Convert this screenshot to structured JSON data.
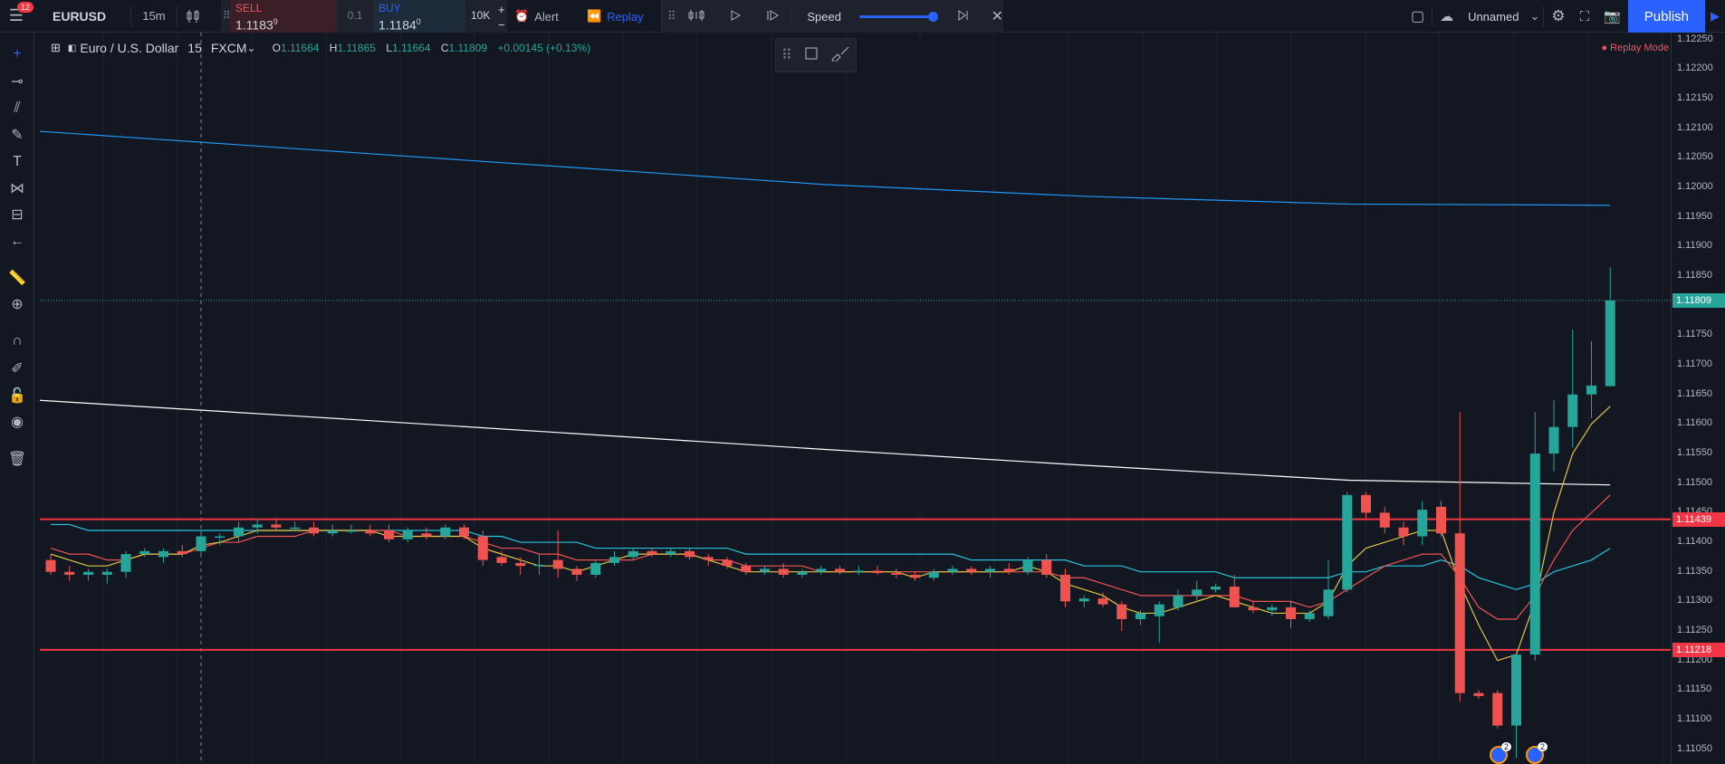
{
  "topbar": {
    "notifications": "12",
    "symbol": "EURUSD",
    "interval": "15m",
    "sell_label": "SELL",
    "sell_price": "1.1183",
    "sell_sup": "9",
    "qty": "0.1",
    "buy_label": "BUY",
    "buy_price": "1.1184",
    "buy_sup": "0",
    "lots": "10K",
    "alert_label": "Alert",
    "replay_label": "Replay",
    "speed_label": "Speed",
    "layout_name": "Unnamed",
    "publish_label": "Publish"
  },
  "replay": {
    "speed_level": 1.0
  },
  "legend": {
    "name": "Euro / U.S. Dollar",
    "interval": "15",
    "source": "FXCM",
    "o_key": "O",
    "o": "1.11664",
    "h_key": "H",
    "h": "1.11865",
    "l_key": "L",
    "l": "1.11664",
    "c_key": "C",
    "c": "1.11809",
    "change": "+0.00145 (+0.13%)"
  },
  "replay_mode": "Replay Mode",
  "colors": {
    "up": "#26a69a",
    "down": "#ef5350",
    "hline": "#f23645",
    "ema_slow": "#ffffff",
    "ema_long": "#2196f3",
    "ma_fast": "#e0c341",
    "ma_mid": "#ef5350",
    "ma_slow": "#26c6da"
  },
  "chart_data": {
    "type": "candlestick",
    "price_axis": [
      "1.12250",
      "1.12200",
      "1.12150",
      "1.12100",
      "1.12050",
      "1.12000",
      "1.11950",
      "1.11900",
      "1.11850",
      "1.11800",
      "1.11750",
      "1.11700",
      "1.11650",
      "1.11600",
      "1.11550",
      "1.11500",
      "1.11450",
      "1.11400",
      "1.11350",
      "1.11300",
      "1.11250",
      "1.11200",
      "1.11150",
      "1.11100",
      "1.11050"
    ],
    "ylim": [
      1.11025,
      1.12262
    ],
    "current_price": "1.11809",
    "horizontal_lines": [
      "1.11439",
      "1.11218"
    ],
    "candles": [
      [
        1.1137,
        1.1138,
        1.11345,
        1.1135
      ],
      [
        1.1135,
        1.1136,
        1.11335,
        1.11345
      ],
      [
        1.11345,
        1.11355,
        1.11335,
        1.1135
      ],
      [
        1.11345,
        1.11355,
        1.1133,
        1.1135
      ],
      [
        1.1135,
        1.11385,
        1.1134,
        1.1138
      ],
      [
        1.1138,
        1.1139,
        1.11375,
        1.11385
      ],
      [
        1.11375,
        1.1139,
        1.11365,
        1.11385
      ],
      [
        1.11385,
        1.11395,
        1.11375,
        1.1138
      ],
      [
        1.11385,
        1.1142,
        1.1138,
        1.1141
      ],
      [
        1.1141,
        1.11415,
        1.11395,
        1.1141
      ],
      [
        1.1141,
        1.11435,
        1.114,
        1.11425
      ],
      [
        1.11425,
        1.1144,
        1.11415,
        1.1143
      ],
      [
        1.1143,
        1.1144,
        1.1142,
        1.11425
      ],
      [
        1.11425,
        1.11435,
        1.1142,
        1.11425
      ],
      [
        1.11425,
        1.11435,
        1.1141,
        1.11415
      ],
      [
        1.11415,
        1.1143,
        1.1141,
        1.1142
      ],
      [
        1.1142,
        1.1143,
        1.11415,
        1.1142
      ],
      [
        1.1142,
        1.1143,
        1.1141,
        1.11415
      ],
      [
        1.1142,
        1.1143,
        1.114,
        1.11405
      ],
      [
        1.11405,
        1.11425,
        1.114,
        1.1142
      ],
      [
        1.11415,
        1.11425,
        1.11405,
        1.1141
      ],
      [
        1.1141,
        1.1143,
        1.11405,
        1.11425
      ],
      [
        1.11425,
        1.1143,
        1.11405,
        1.1141
      ],
      [
        1.1141,
        1.1142,
        1.1136,
        1.1137
      ],
      [
        1.11375,
        1.11385,
        1.1136,
        1.11365
      ],
      [
        1.11365,
        1.11375,
        1.11345,
        1.1136
      ],
      [
        1.1136,
        1.1138,
        1.11345,
        1.11362
      ],
      [
        1.1137,
        1.1142,
        1.1134,
        1.11355
      ],
      [
        1.11355,
        1.1136,
        1.11335,
        1.11345
      ],
      [
        1.11345,
        1.1137,
        1.1134,
        1.11365
      ],
      [
        1.11365,
        1.11385,
        1.1136,
        1.11375
      ],
      [
        1.11375,
        1.1139,
        1.1137,
        1.11385
      ],
      [
        1.11385,
        1.1139,
        1.11375,
        1.1138
      ],
      [
        1.1138,
        1.1139,
        1.11375,
        1.11385
      ],
      [
        1.11385,
        1.1139,
        1.1137,
        1.11375
      ],
      [
        1.11375,
        1.1138,
        1.1136,
        1.1137
      ],
      [
        1.1137,
        1.11375,
        1.11355,
        1.1136
      ],
      [
        1.1136,
        1.11365,
        1.11345,
        1.1135
      ],
      [
        1.1135,
        1.1136,
        1.11345,
        1.11355
      ],
      [
        1.11355,
        1.11365,
        1.1134,
        1.11345
      ],
      [
        1.11345,
        1.11355,
        1.1134,
        1.1135
      ],
      [
        1.1135,
        1.1136,
        1.11345,
        1.11355
      ],
      [
        1.11355,
        1.1136,
        1.11345,
        1.1135
      ],
      [
        1.1135,
        1.1136,
        1.11345,
        1.11352
      ],
      [
        1.11352,
        1.1136,
        1.11345,
        1.11348
      ],
      [
        1.11348,
        1.11355,
        1.1134,
        1.11345
      ],
      [
        1.11345,
        1.1135,
        1.11335,
        1.1134
      ],
      [
        1.1134,
        1.11355,
        1.11335,
        1.1135
      ],
      [
        1.1135,
        1.1136,
        1.11345,
        1.11355
      ],
      [
        1.11355,
        1.1136,
        1.11345,
        1.1135
      ],
      [
        1.1135,
        1.1136,
        1.1134,
        1.11355
      ],
      [
        1.11355,
        1.11365,
        1.11345,
        1.1135
      ],
      [
        1.1135,
        1.11375,
        1.11345,
        1.1137
      ],
      [
        1.1137,
        1.1138,
        1.1134,
        1.11345
      ],
      [
        1.11345,
        1.11355,
        1.1129,
        1.113
      ],
      [
        1.113,
        1.1131,
        1.1129,
        1.11305
      ],
      [
        1.11305,
        1.11315,
        1.1129,
        1.11295
      ],
      [
        1.11295,
        1.113,
        1.1125,
        1.1127
      ],
      [
        1.1127,
        1.11285,
        1.1126,
        1.1128
      ],
      [
        1.11275,
        1.113,
        1.1123,
        1.11295
      ],
      [
        1.1129,
        1.1132,
        1.11285,
        1.1131
      ],
      [
        1.1131,
        1.11335,
        1.113,
        1.1132
      ],
      [
        1.1132,
        1.1133,
        1.11315,
        1.11325
      ],
      [
        1.11325,
        1.11345,
        1.1129,
        1.1129
      ],
      [
        1.1129,
        1.113,
        1.1128,
        1.11285
      ],
      [
        1.11285,
        1.11295,
        1.11275,
        1.1129
      ],
      [
        1.1129,
        1.113,
        1.11255,
        1.1127
      ],
      [
        1.1127,
        1.11285,
        1.11265,
        1.1128
      ],
      [
        1.11275,
        1.1137,
        1.1127,
        1.1132
      ],
      [
        1.1132,
        1.11485,
        1.11315,
        1.1148
      ],
      [
        1.1148,
        1.11485,
        1.1144,
        1.1145
      ],
      [
        1.1145,
        1.1146,
        1.11415,
        1.11425
      ],
      [
        1.11425,
        1.11435,
        1.11395,
        1.1141
      ],
      [
        1.1141,
        1.1147,
        1.11395,
        1.11455
      ],
      [
        1.1146,
        1.1147,
        1.1141,
        1.11415
      ],
      [
        1.11415,
        1.1162,
        1.1113,
        1.11145
      ],
      [
        1.11145,
        1.1115,
        1.11135,
        1.1114
      ],
      [
        1.11145,
        1.1115,
        1.11085,
        1.1109
      ],
      [
        1.1109,
        1.1121,
        1.11035,
        1.1121
      ],
      [
        1.1121,
        1.1162,
        1.112,
        1.1155
      ],
      [
        1.1155,
        1.1164,
        1.1152,
        1.11595
      ],
      [
        1.11595,
        1.1176,
        1.1156,
        1.1165
      ],
      [
        1.1165,
        1.1174,
        1.1161,
        1.11665
      ],
      [
        1.11664,
        1.11865,
        1.11664,
        1.11809
      ]
    ],
    "ma_fast": [
      1.1138,
      1.1137,
      1.1136,
      1.1136,
      1.1137,
      1.1138,
      1.1138,
      1.1138,
      1.11395,
      1.114,
      1.1141,
      1.1142,
      1.1142,
      1.1142,
      1.1142,
      1.1142,
      1.1142,
      1.1142,
      1.1141,
      1.1141,
      1.1141,
      1.1141,
      1.1141,
      1.1139,
      1.1138,
      1.1137,
      1.1136,
      1.1136,
      1.1135,
      1.1136,
      1.1137,
      1.1138,
      1.1138,
      1.1138,
      1.1138,
      1.1137,
      1.1136,
      1.1135,
      1.1135,
      1.1135,
      1.1135,
      1.1135,
      1.1135,
      1.1135,
      1.1135,
      1.1135,
      1.1134,
      1.1135,
      1.1135,
      1.1135,
      1.1135,
      1.1135,
      1.1136,
      1.1135,
      1.1133,
      1.1132,
      1.1131,
      1.1129,
      1.1128,
      1.1128,
      1.1129,
      1.113,
      1.1131,
      1.113,
      1.1129,
      1.1128,
      1.1128,
      1.1128,
      1.113,
      1.1136,
      1.1139,
      1.114,
      1.1141,
      1.1142,
      1.1142,
      1.1133,
      1.1126,
      1.112,
      1.1121,
      1.113,
      1.1145,
      1.1155,
      1.116,
      1.1163
    ],
    "ma_mid": [
      1.1139,
      1.1138,
      1.1138,
      1.1137,
      1.1137,
      1.1138,
      1.1138,
      1.1138,
      1.1139,
      1.114,
      1.114,
      1.1141,
      1.1141,
      1.1141,
      1.1142,
      1.1142,
      1.1142,
      1.1142,
      1.1142,
      1.1141,
      1.1141,
      1.1141,
      1.1141,
      1.114,
      1.1139,
      1.1139,
      1.1138,
      1.1138,
      1.1137,
      1.1137,
      1.1137,
      1.1137,
      1.1138,
      1.1138,
      1.1138,
      1.1137,
      1.1137,
      1.1136,
      1.1136,
      1.1136,
      1.1136,
      1.1135,
      1.1135,
      1.1135,
      1.1135,
      1.1135,
      1.1135,
      1.1135,
      1.1135,
      1.1135,
      1.1135,
      1.1135,
      1.1135,
      1.1135,
      1.1134,
      1.1134,
      1.1133,
      1.1132,
      1.1131,
      1.1131,
      1.1131,
      1.1131,
      1.1131,
      1.1131,
      1.113,
      1.113,
      1.113,
      1.1129,
      1.113,
      1.1132,
      1.1134,
      1.1136,
      1.1137,
      1.1138,
      1.1138,
      1.1134,
      1.1129,
      1.1127,
      1.1127,
      1.1131,
      1.1137,
      1.1142,
      1.1145,
      1.1148
    ],
    "ma_slow": [
      1.1143,
      1.1143,
      1.1142,
      1.1142,
      1.1142,
      1.1142,
      1.1142,
      1.1142,
      1.1142,
      1.1142,
      1.1142,
      1.1142,
      1.1142,
      1.1142,
      1.1142,
      1.1142,
      1.1142,
      1.1142,
      1.1142,
      1.1142,
      1.1142,
      1.1142,
      1.1142,
      1.1141,
      1.1141,
      1.114,
      1.114,
      1.114,
      1.114,
      1.1139,
      1.1139,
      1.1139,
      1.1139,
      1.1139,
      1.1139,
      1.1139,
      1.1139,
      1.1138,
      1.1138,
      1.1138,
      1.1138,
      1.1138,
      1.1138,
      1.1138,
      1.1138,
      1.1138,
      1.1138,
      1.1138,
      1.1138,
      1.1137,
      1.1137,
      1.1137,
      1.1137,
      1.1137,
      1.1137,
      1.1136,
      1.1136,
      1.1136,
      1.1135,
      1.1135,
      1.1135,
      1.1135,
      1.1135,
      1.1134,
      1.1134,
      1.1134,
      1.1134,
      1.1134,
      1.1134,
      1.1135,
      1.1135,
      1.1136,
      1.1136,
      1.1136,
      1.1137,
      1.1136,
      1.1134,
      1.1133,
      1.1132,
      1.1133,
      1.1135,
      1.1136,
      1.1137,
      1.1139
    ],
    "ema_slow": [
      1.1164,
      1.11613,
      1.11585,
      1.11557,
      1.1153,
      1.11505,
      1.11497
    ],
    "ema_long": [
      1.12095,
      1.12065,
      1.12035,
      1.12005,
      1.11985,
      1.11972,
      1.1197
    ]
  }
}
